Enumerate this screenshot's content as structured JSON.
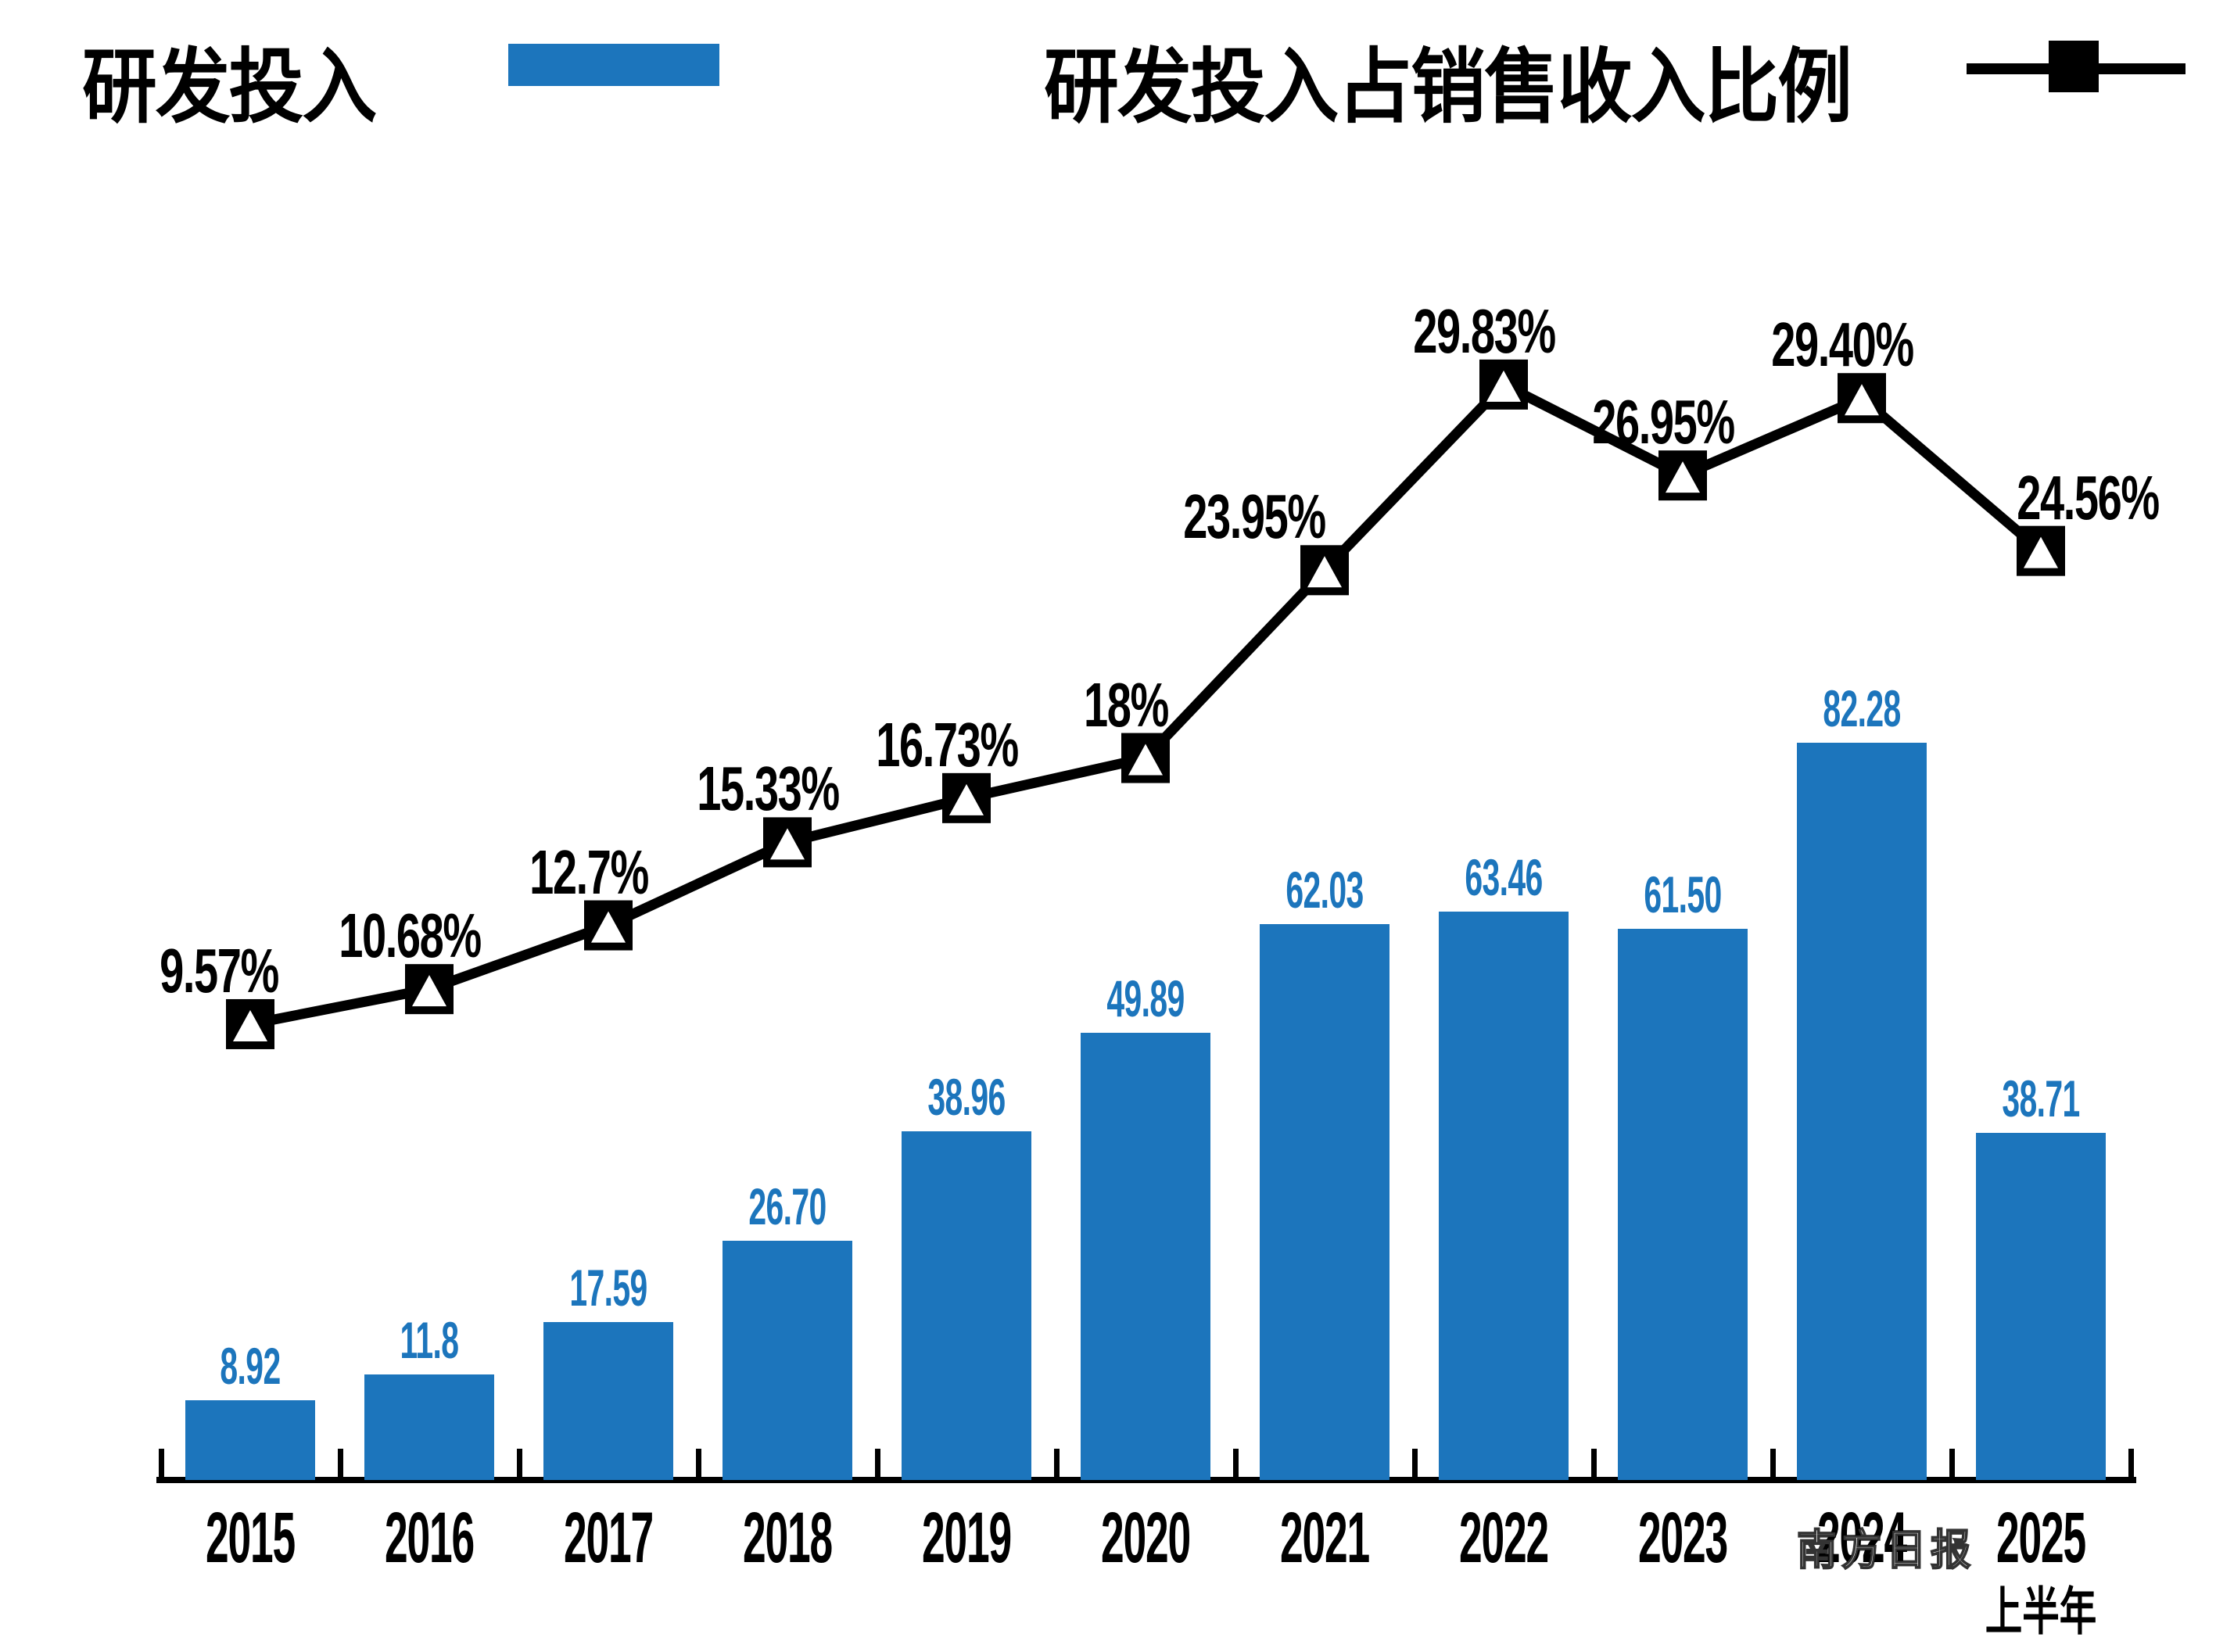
{
  "legend": {
    "bar_label": "研发投入",
    "line_label": "研发投入占销售收入比例"
  },
  "watermark": "南方日报",
  "colors": {
    "bar": "#1C75BC",
    "bar_value_text": "#1C75BC",
    "line": "#000000",
    "axis": "#000000",
    "background": "#FFFFFF"
  },
  "chart_data": {
    "type": "bar+line",
    "categories": [
      "2015",
      "2016",
      "2017",
      "2018",
      "2019",
      "2020",
      "2021",
      "2022",
      "2023",
      "2024",
      "2025"
    ],
    "category_note": {
      "index": 10,
      "text": "上半年"
    },
    "series": [
      {
        "name": "研发投入",
        "type": "bar",
        "values": [
          8.92,
          11.8,
          17.59,
          26.7,
          38.96,
          49.89,
          62.03,
          63.46,
          61.5,
          82.28,
          38.71
        ],
        "labels": [
          "8.92",
          "11.8",
          "17.59",
          "26.70",
          "38.96",
          "49.89",
          "62.03",
          "63.46",
          "61.50",
          "82.28",
          "38.71"
        ]
      },
      {
        "name": "研发投入占销售收入比例",
        "type": "line",
        "values": [
          9.57,
          10.68,
          12.7,
          15.33,
          16.73,
          18,
          23.95,
          29.83,
          26.95,
          29.4,
          24.56
        ],
        "labels": [
          "9.57%",
          "10.68%",
          "12.7%",
          "15.33%",
          "16.73%",
          "18%",
          "23.95%",
          "29.83%",
          "26.95%",
          "29.40%",
          "24.56%"
        ]
      }
    ],
    "title": "",
    "xlabel": "",
    "ylabel": "",
    "bar_axis_range": [
      0,
      90
    ],
    "pct_axis_range": [
      5,
      32
    ],
    "grid": false,
    "legend_position": "top"
  }
}
